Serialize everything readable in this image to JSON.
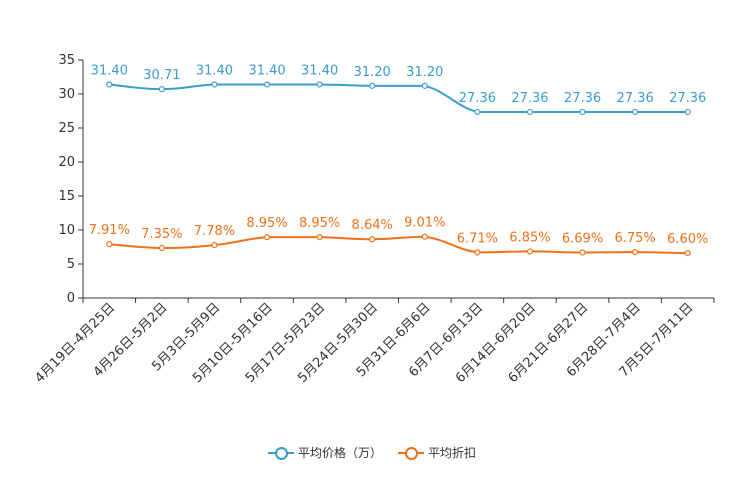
{
  "chart_data": {
    "type": "line",
    "categories": [
      "4月19日-4月25日",
      "4月26日-5月2日",
      "5月3日-5月9日",
      "5月10日-5月16日",
      "5月17日-5月23日",
      "5月24日-5月30日",
      "5月31日-6月6日",
      "6月7日-6月13日",
      "6月14日-6月20日",
      "6月21日-6月27日",
      "6月28日-7月4日",
      "7月5日-7月11日"
    ],
    "ylim": [
      0,
      35
    ],
    "yticks": [
      0,
      5,
      10,
      15,
      20,
      25,
      30,
      35
    ],
    "series": [
      {
        "name": "平均价格（万）",
        "color": "#3a9dcf",
        "values": [
          31.4,
          30.71,
          31.4,
          31.4,
          31.4,
          31.2,
          31.2,
          27.36,
          27.36,
          27.36,
          27.36,
          27.36
        ],
        "labels": [
          "31.40",
          "30.71",
          "31.40",
          "31.40",
          "31.40",
          "31.20",
          "31.20",
          "27.36",
          "27.36",
          "27.36",
          "27.36",
          "27.36"
        ]
      },
      {
        "name": "平均折扣",
        "color": "#f07117",
        "values": [
          7.91,
          7.35,
          7.78,
          8.95,
          8.95,
          8.64,
          9.01,
          6.71,
          6.85,
          6.69,
          6.75,
          6.6
        ],
        "labels": [
          "7.91%",
          "7.35%",
          "7.78%",
          "8.95%",
          "8.95%",
          "8.64%",
          "9.01%",
          "6.71%",
          "6.85%",
          "6.69%",
          "6.75%",
          "6.60%"
        ]
      }
    ],
    "legend_position": "bottom-center"
  }
}
